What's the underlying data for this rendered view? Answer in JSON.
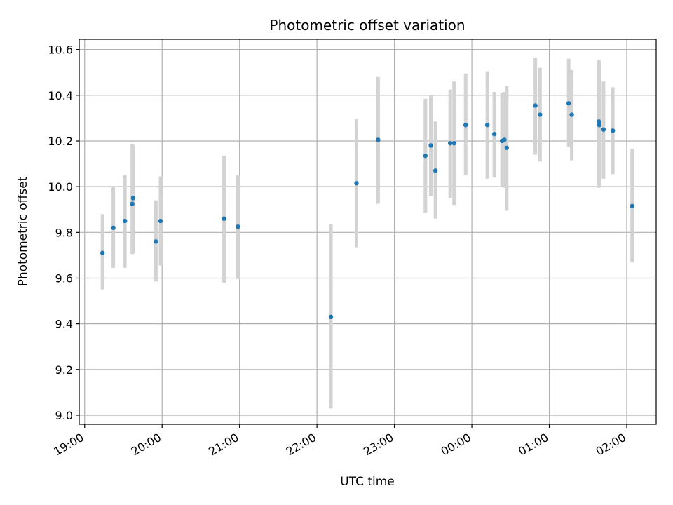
{
  "chart_data": {
    "type": "scatter",
    "title": "Photometric offset variation",
    "xlabel": "UTC time",
    "ylabel": "Photometric offset",
    "x_ticks": [
      "19:00",
      "20:00",
      "21:00",
      "22:00",
      "23:00",
      "00:00",
      "01:00",
      "02:00"
    ],
    "y_ticks": [
      "9.0",
      "9.2",
      "9.4",
      "9.6",
      "9.8",
      "10.0",
      "10.2",
      "10.4",
      "10.6"
    ],
    "xlim_hours": [
      18.93,
      26.38
    ],
    "ylim": [
      8.96,
      10.645
    ],
    "grid": true,
    "point_color": "#1f77b4",
    "errorbar_color": "#d3d3d3",
    "points": [
      {
        "t": 19.23,
        "y": 9.71,
        "lo": 9.55,
        "hi": 9.88
      },
      {
        "t": 19.37,
        "y": 9.82,
        "lo": 9.645,
        "hi": 10.0
      },
      {
        "t": 19.52,
        "y": 9.85,
        "lo": 9.645,
        "hi": 10.05
      },
      {
        "t": 19.615,
        "y": 9.925,
        "lo": 9.705,
        "hi": 10.185
      },
      {
        "t": 19.625,
        "y": 9.95,
        "lo": 9.71,
        "hi": 10.18
      },
      {
        "t": 19.92,
        "y": 9.76,
        "lo": 9.585,
        "hi": 9.94
      },
      {
        "t": 19.98,
        "y": 9.85,
        "lo": 9.655,
        "hi": 10.045
      },
      {
        "t": 20.8,
        "y": 9.86,
        "lo": 9.58,
        "hi": 10.135
      },
      {
        "t": 20.98,
        "y": 9.825,
        "lo": 9.595,
        "hi": 10.05
      },
      {
        "t": 22.18,
        "y": 9.43,
        "lo": 9.03,
        "hi": 9.835
      },
      {
        "t": 22.51,
        "y": 10.015,
        "lo": 9.735,
        "hi": 10.295
      },
      {
        "t": 22.79,
        "y": 10.205,
        "lo": 9.925,
        "hi": 10.48
      },
      {
        "t": 23.4,
        "y": 10.135,
        "lo": 9.885,
        "hi": 10.385
      },
      {
        "t": 23.47,
        "y": 10.18,
        "lo": 9.96,
        "hi": 10.4
      },
      {
        "t": 23.53,
        "y": 10.07,
        "lo": 9.86,
        "hi": 10.285
      },
      {
        "t": 23.72,
        "y": 10.19,
        "lo": 9.95,
        "hi": 10.425
      },
      {
        "t": 23.77,
        "y": 10.19,
        "lo": 9.92,
        "hi": 10.46
      },
      {
        "t": 23.92,
        "y": 10.27,
        "lo": 10.05,
        "hi": 10.495
      },
      {
        "t": 24.2,
        "y": 10.27,
        "lo": 10.035,
        "hi": 10.505
      },
      {
        "t": 24.29,
        "y": 10.23,
        "lo": 10.04,
        "hi": 10.415
      },
      {
        "t": 24.39,
        "y": 10.2,
        "lo": 10.0,
        "hi": 10.41
      },
      {
        "t": 24.42,
        "y": 10.205,
        "lo": 9.995,
        "hi": 10.415
      },
      {
        "t": 24.45,
        "y": 10.17,
        "lo": 9.895,
        "hi": 10.44
      },
      {
        "t": 24.82,
        "y": 10.355,
        "lo": 10.14,
        "hi": 10.565
      },
      {
        "t": 24.88,
        "y": 10.315,
        "lo": 10.11,
        "hi": 10.52
      },
      {
        "t": 25.25,
        "y": 10.365,
        "lo": 10.175,
        "hi": 10.56
      },
      {
        "t": 25.29,
        "y": 10.315,
        "lo": 10.115,
        "hi": 10.51
      },
      {
        "t": 25.64,
        "y": 10.285,
        "lo": 9.995,
        "hi": 10.555
      },
      {
        "t": 25.645,
        "y": 10.27,
        "lo": 10.0,
        "hi": 10.545
      },
      {
        "t": 25.7,
        "y": 10.25,
        "lo": 10.035,
        "hi": 10.46
      },
      {
        "t": 25.82,
        "y": 10.245,
        "lo": 10.055,
        "hi": 10.435
      },
      {
        "t": 26.07,
        "y": 9.915,
        "lo": 9.67,
        "hi": 10.165
      }
    ]
  }
}
